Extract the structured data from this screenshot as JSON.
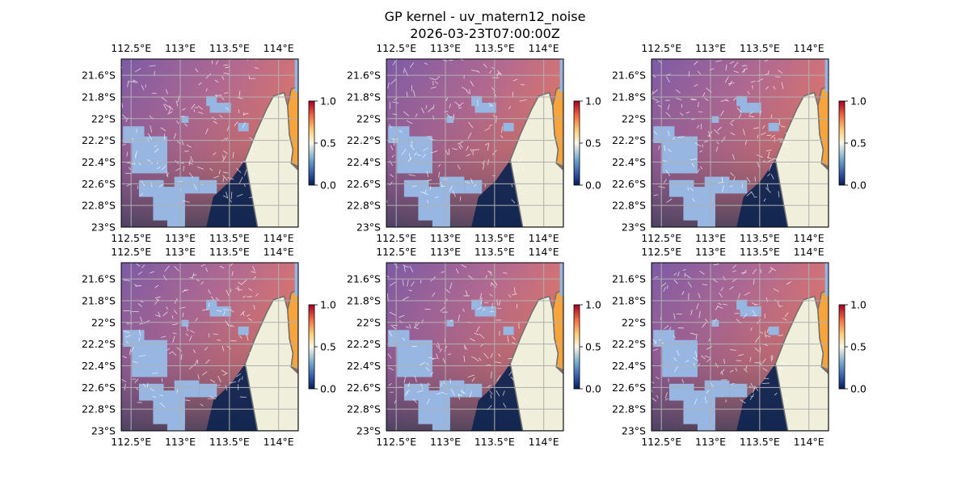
{
  "figure": {
    "title_line1": "GP kernel - uv_matern12_noise",
    "title_line2": "2026-03-23T07:00:00Z"
  },
  "map": {
    "lon_range": [
      112.4,
      114.2
    ],
    "lat_range": [
      -23.0,
      -21.45
    ],
    "lon_ticks": [
      112.5,
      113.0,
      113.5,
      114.0
    ],
    "lat_ticks": [
      -21.6,
      -21.8,
      -22.0,
      -22.2,
      -22.4,
      -22.6,
      -22.8,
      -23.0
    ],
    "lon_labels": [
      "112.5°E",
      "113°E",
      "113.5°E",
      "114°E"
    ],
    "lat_labels": [
      "21.6°S",
      "21.8°S",
      "22°S",
      "22.2°S",
      "22.4°S",
      "22.6°S",
      "22.8°S",
      "23°S"
    ],
    "gridlines": true,
    "land_color": "#efefdc",
    "ocean_color": "#97b6e1",
    "coast_color": "#6f6f6f"
  },
  "colorbar": {
    "min": 0.0,
    "max": 1.0,
    "ticks": [
      0.0,
      0.5,
      1.0
    ],
    "tick_labels": [
      "0.0",
      "0.5",
      "1.0"
    ],
    "colormap": "RdYlBu_r"
  },
  "panels": [
    {
      "id": "panel-1",
      "row": 1,
      "col": 1
    },
    {
      "id": "panel-2",
      "row": 1,
      "col": 2
    },
    {
      "id": "panel-3",
      "row": 1,
      "col": 3
    },
    {
      "id": "panel-4",
      "row": 2,
      "col": 1
    },
    {
      "id": "panel-5",
      "row": 2,
      "col": 2
    },
    {
      "id": "panel-6",
      "row": 2,
      "col": 3
    }
  ]
}
